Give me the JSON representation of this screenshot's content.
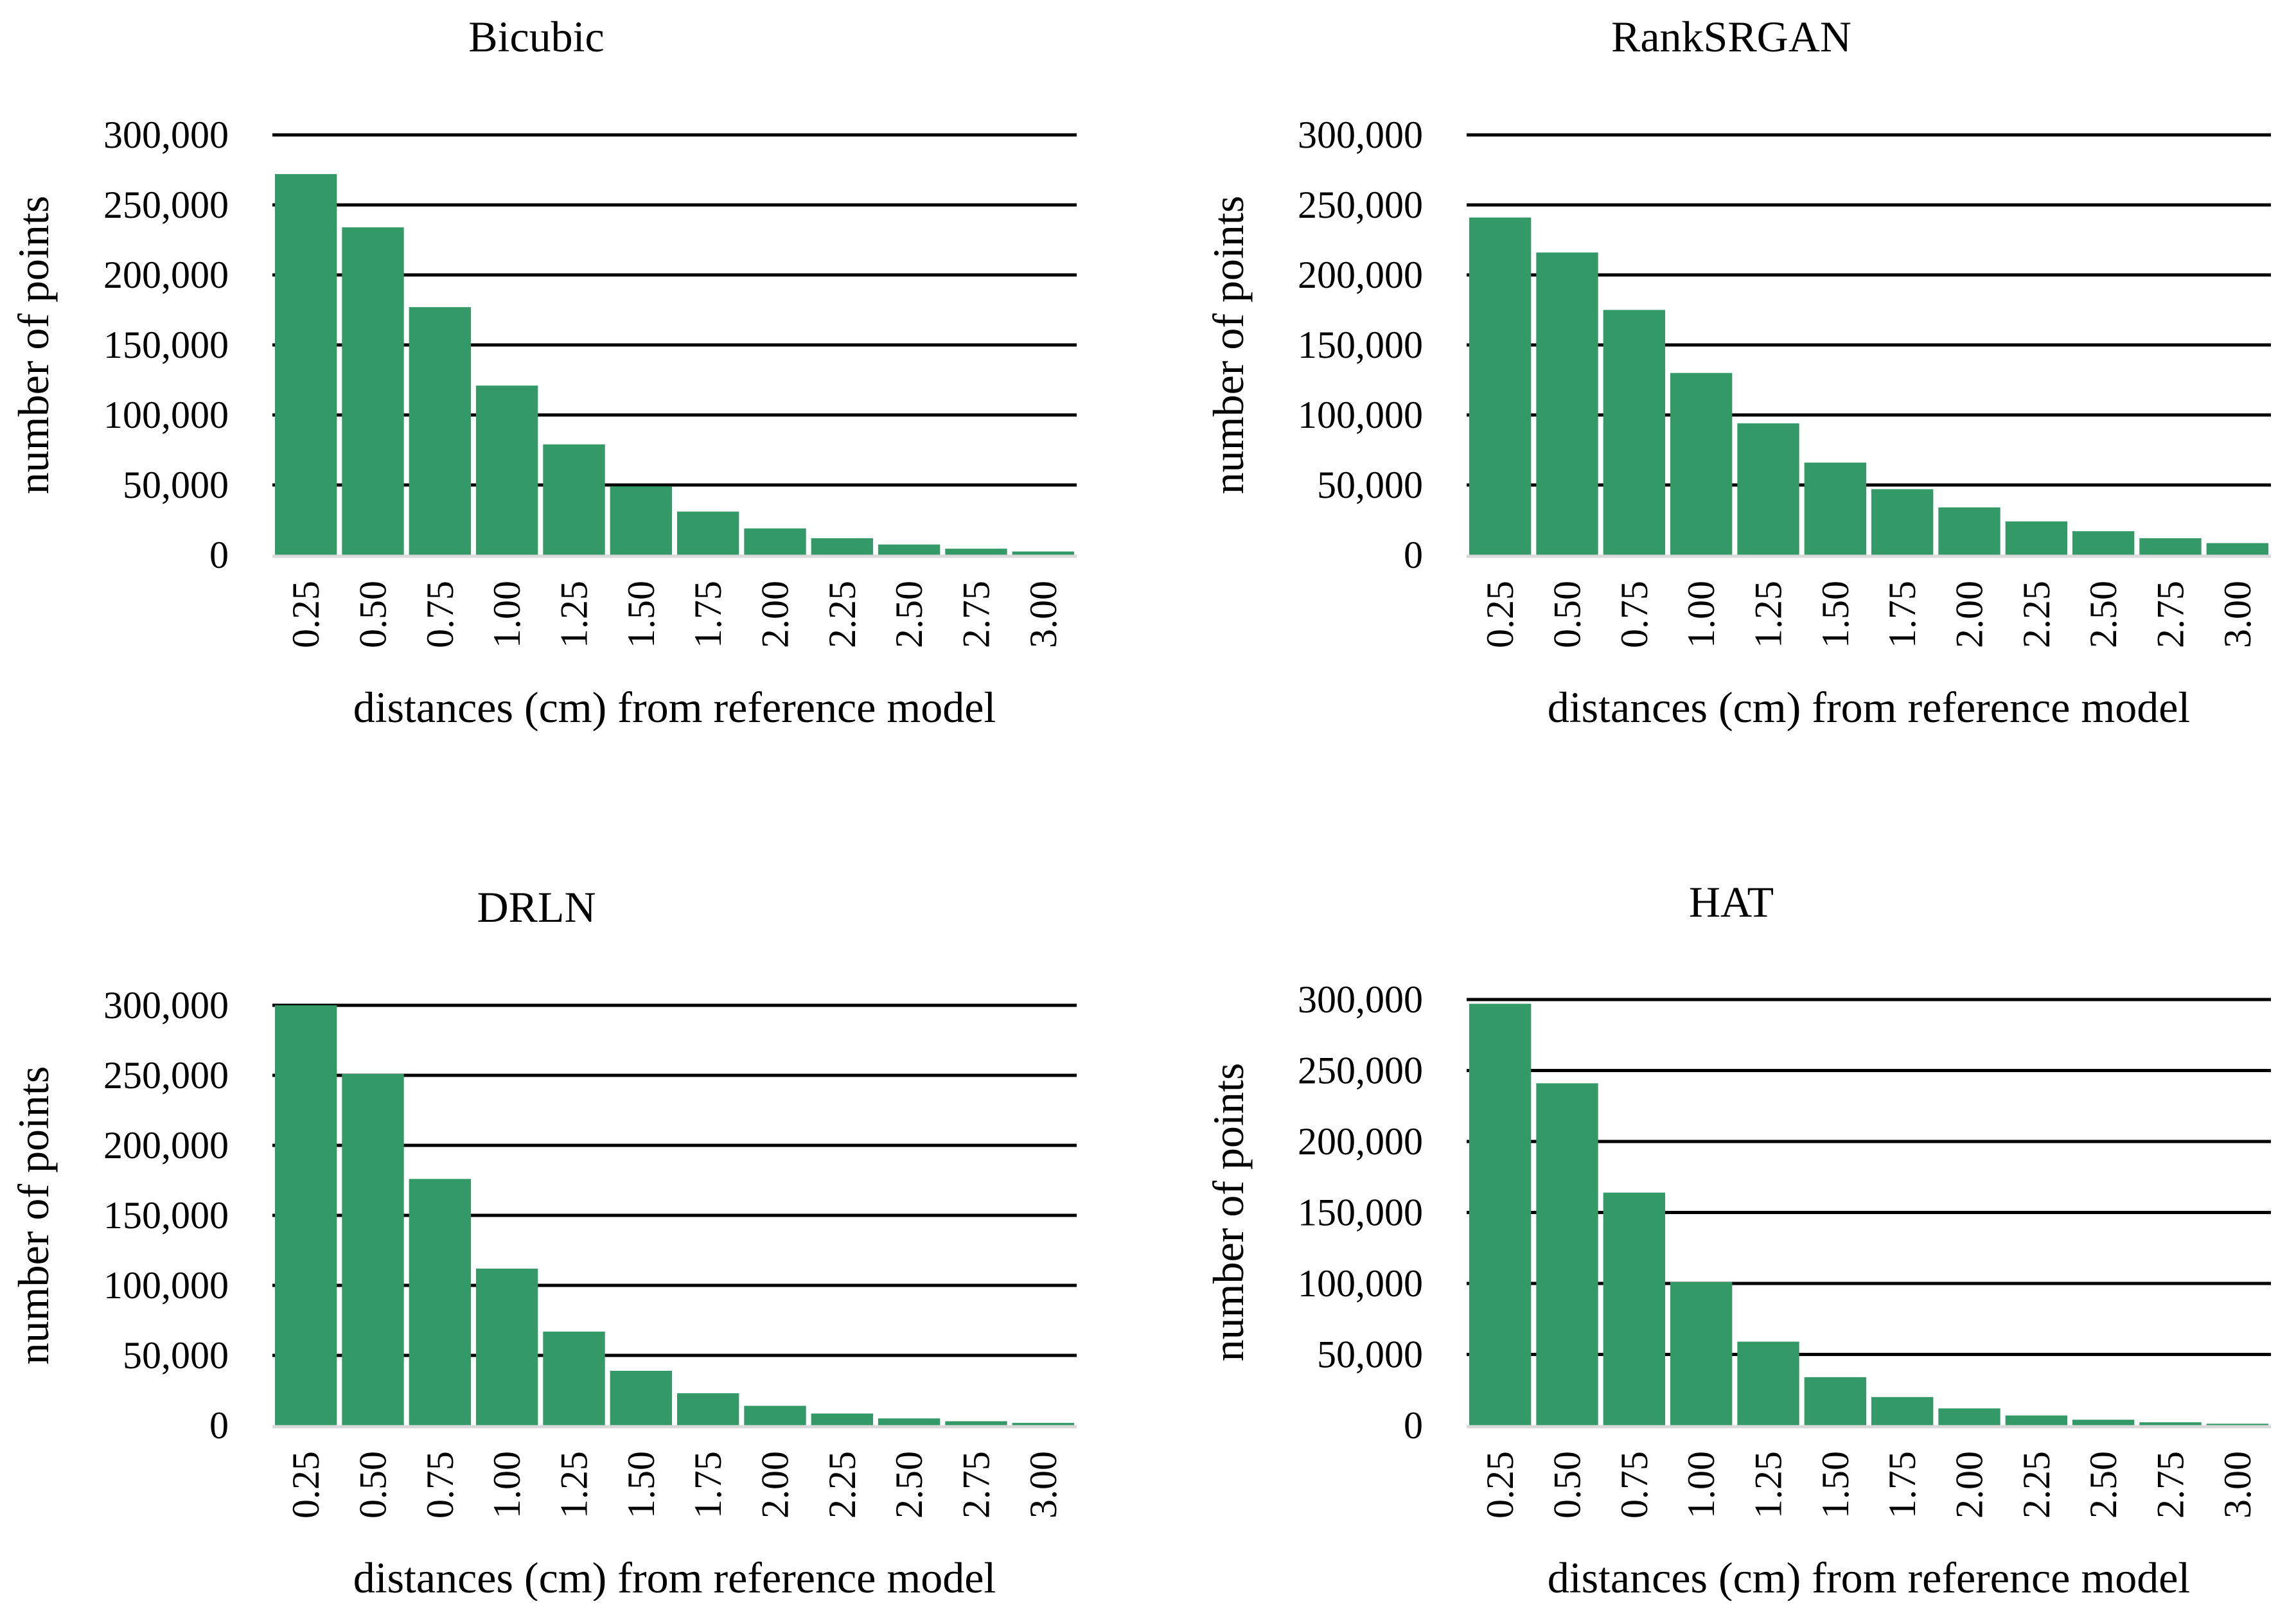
{
  "figure": {
    "bar_color": "#339966",
    "grid_color": "#000000",
    "axis_color": "#d9d9d9"
  },
  "chart_data": [
    {
      "type": "bar",
      "title": "Bicubic",
      "xlabel": "distances (cm) from reference model",
      "ylabel": "number of points",
      "ylim": [
        0,
        300000
      ],
      "yticks": [
        0,
        50000,
        100000,
        150000,
        200000,
        250000,
        300000
      ],
      "ytick_labels": [
        "0",
        "50,000",
        "100,000",
        "150,000",
        "200,000",
        "250,000",
        "300,000"
      ],
      "categories": [
        "0.25",
        "0.50",
        "0.75",
        "1.00",
        "1.25",
        "1.50",
        "1.75",
        "2.00",
        "2.25",
        "2.50",
        "2.75",
        "3.00"
      ],
      "values": [
        272000,
        234000,
        177000,
        121000,
        79000,
        49000,
        31000,
        19000,
        12000,
        7500,
        4500,
        2500
      ]
    },
    {
      "type": "bar",
      "title": "RankSRGAN",
      "xlabel": "distances (cm) from reference model",
      "ylabel": "number of points",
      "ylim": [
        0,
        300000
      ],
      "yticks": [
        0,
        50000,
        100000,
        150000,
        200000,
        250000,
        300000
      ],
      "ytick_labels": [
        "0",
        "50,000",
        "100,000",
        "150,000",
        "200,000",
        "250,000",
        "300,000"
      ],
      "categories": [
        "0.25",
        "0.50",
        "0.75",
        "1.00",
        "1.25",
        "1.50",
        "1.75",
        "2.00",
        "2.25",
        "2.50",
        "2.75",
        "3.00"
      ],
      "values": [
        241000,
        216000,
        175000,
        130000,
        94000,
        66000,
        47000,
        34000,
        24000,
        17000,
        12000,
        8500
      ]
    },
    {
      "type": "bar",
      "title": "DRLN",
      "xlabel": "distances (cm) from reference model",
      "ylabel": "number of points",
      "ylim": [
        0,
        300000
      ],
      "yticks": [
        0,
        50000,
        100000,
        150000,
        200000,
        250000,
        300000
      ],
      "ytick_labels": [
        "0",
        "50,000",
        "100,000",
        "150,000",
        "200,000",
        "250,000",
        "300,000"
      ],
      "categories": [
        "0.25",
        "0.50",
        "0.75",
        "1.00",
        "1.25",
        "1.50",
        "1.75",
        "2.00",
        "2.25",
        "2.50",
        "2.75",
        "3.00"
      ],
      "values": [
        300000,
        251000,
        176000,
        112000,
        67000,
        39000,
        23000,
        14000,
        8500,
        5000,
        3000,
        1800
      ]
    },
    {
      "type": "bar",
      "title": "HAT",
      "xlabel": "distances (cm) from reference model",
      "ylabel": "number of points",
      "ylim": [
        0,
        300000
      ],
      "yticks": [
        0,
        50000,
        100000,
        150000,
        200000,
        250000,
        300000
      ],
      "ytick_labels": [
        "0",
        "50,000",
        "100,000",
        "150,000",
        "200,000",
        "250,000",
        "300,000"
      ],
      "categories": [
        "0.25",
        "0.50",
        "0.75",
        "1.00",
        "1.25",
        "1.50",
        "1.75",
        "2.00",
        "2.25",
        "2.50",
        "2.75",
        "3.00"
      ],
      "values": [
        297000,
        241000,
        164000,
        101000,
        59000,
        34000,
        20000,
        12000,
        7000,
        4000,
        2200,
        1200
      ]
    }
  ]
}
